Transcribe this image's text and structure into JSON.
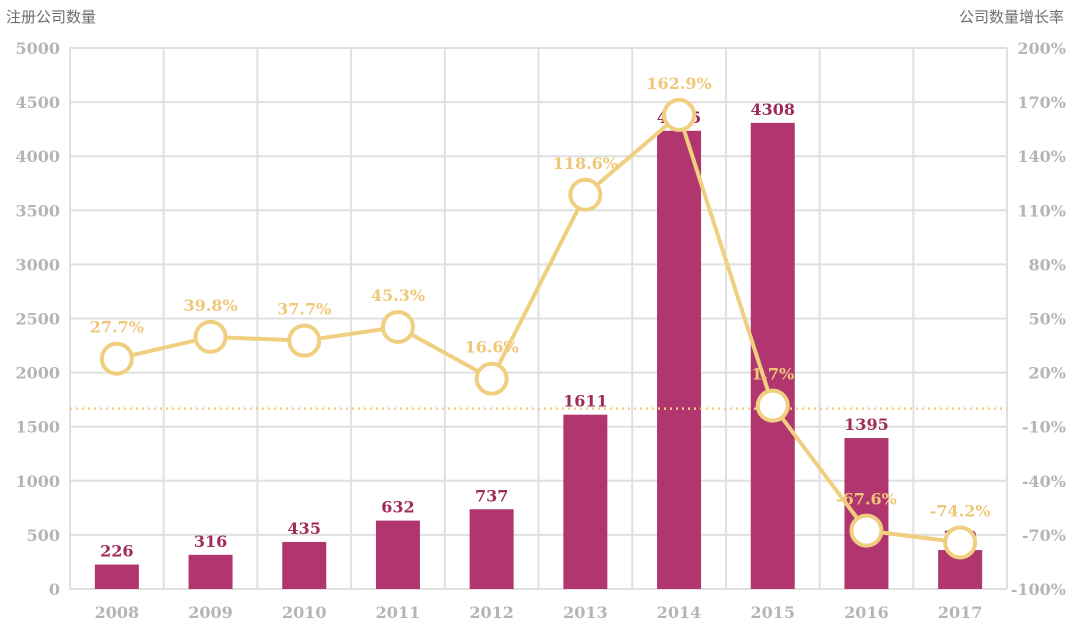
{
  "left_axis_title": "注册公司数量",
  "right_axis_title": "公司数量增长率",
  "colors": {
    "bar": "#b1356e",
    "bar_label": "#9e2c5a",
    "line": "#f0cf80",
    "line_label": "#efc877",
    "grid": "#e0e0e0",
    "tick": "#b5b5b5"
  },
  "chart_data": {
    "type": "bar",
    "categories": [
      "2008",
      "2009",
      "2010",
      "2011",
      "2012",
      "2013",
      "2014",
      "2015",
      "2016",
      "2017"
    ],
    "series": [
      {
        "type": "bar",
        "axis": "left",
        "values": [
          226,
          316,
          435,
          632,
          737,
          1611,
          4235,
          4308,
          1395,
          360
        ],
        "labels": [
          "226",
          "316",
          "435",
          "632",
          "737",
          "1611",
          "4235",
          "4308",
          "1395",
          "360"
        ]
      },
      {
        "type": "line",
        "axis": "right",
        "values": [
          27.7,
          39.8,
          37.7,
          45.3,
          16.6,
          118.6,
          162.9,
          1.7,
          -67.6,
          -74.2
        ],
        "labels": [
          "27.7%",
          "39.8%",
          "37.7%",
          "45.3%",
          "16.6%",
          "118.6%",
          "162.9%",
          "1.7%",
          "-67.6%",
          "-74.2%"
        ]
      }
    ],
    "y_left": {
      "ylim": [
        0,
        5000
      ],
      "ticks": [
        0,
        500,
        1000,
        1500,
        2000,
        2500,
        3000,
        3500,
        4000,
        4500,
        5000
      ],
      "tick_labels": [
        "0",
        "500",
        "1000",
        "1500",
        "2000",
        "2500",
        "3000",
        "3500",
        "4000",
        "4500",
        "5000"
      ]
    },
    "y_right": {
      "ylim": [
        -100,
        200
      ],
      "ticks": [
        -100,
        -70,
        -40,
        -10,
        20,
        50,
        80,
        110,
        140,
        170,
        200
      ],
      "tick_labels": [
        "-100%",
        "-70%",
        "-40%",
        "-10%",
        "20%",
        "50%",
        "80%",
        "110%",
        "140%",
        "170%",
        "200%"
      ]
    },
    "reference_line": {
      "axis": "right",
      "value": 0,
      "style": "dotted"
    },
    "grid": true
  }
}
